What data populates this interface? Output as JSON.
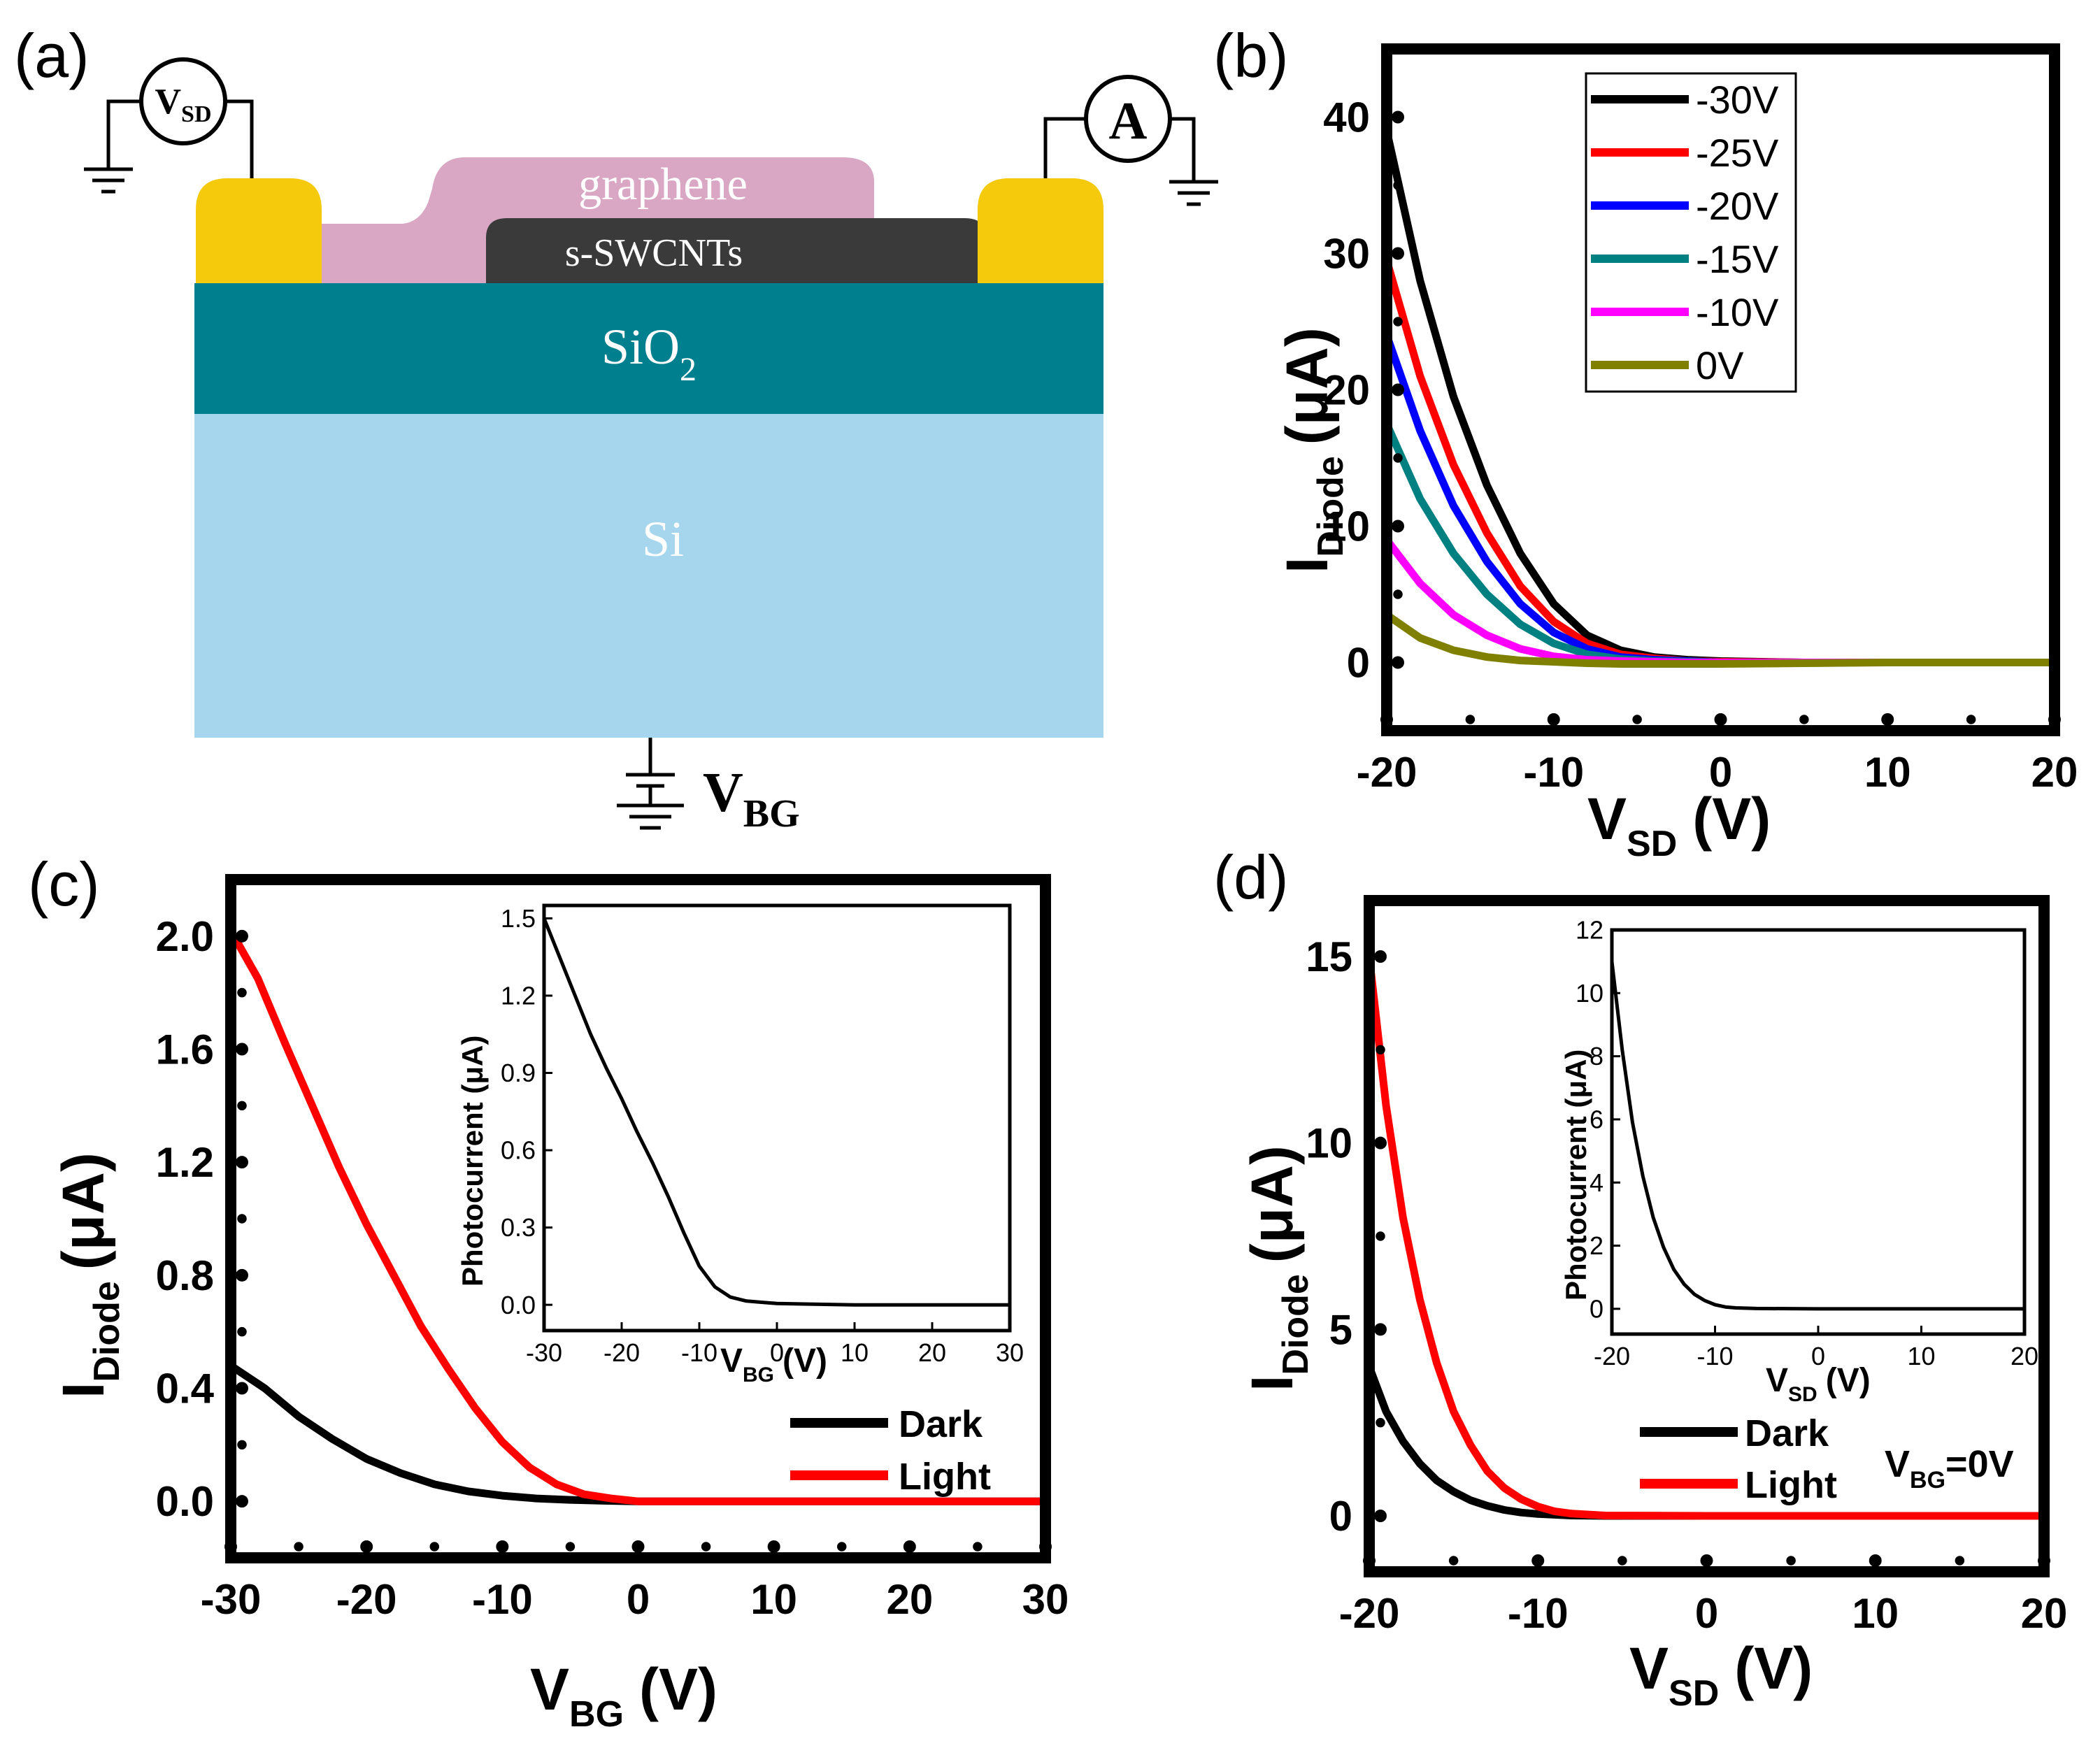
{
  "colors": {
    "gold": "#f5c90c",
    "graphene": "#d9a6c3",
    "swcnt": "#3a3a3a",
    "sio2": "#00808f",
    "si": "#a6d5ee",
    "black": "#000000",
    "red": "#ff0000",
    "blue": "#0000ff",
    "teal": "#008080",
    "magenta": "#ff00ff",
    "olive": "#808000"
  },
  "panel_a": {
    "label": "(a)",
    "graphene": "graphene",
    "swcnt": "s-SWCNTs",
    "sio2_main": "SiO",
    "sio2_sub": "2",
    "si": "Si",
    "vsd_main": "V",
    "vsd_sub": "SD",
    "ammeter": "A",
    "vbg_main": "V",
    "vbg_sub": "BG",
    "icons": [
      "ground-icon",
      "voltmeter-icon",
      "ammeter-icon",
      "battery-icon"
    ]
  },
  "chart_data": [
    {
      "id": "b",
      "type": "line",
      "panel_label": "(b)",
      "ylabel_main": "I",
      "ylabel_sub": "Diode",
      "ylabel_unit": "(μA)",
      "xlabel_main": "V",
      "xlabel_sub": "SD",
      "xlabel_unit": "(V)",
      "xlim": [
        -20,
        20
      ],
      "ylim": [
        -5,
        45
      ],
      "xticks": [
        "-20",
        "-10",
        "0",
        "10",
        "20"
      ],
      "xtick_values": [
        -20,
        -10,
        0,
        10,
        20
      ],
      "yticks": [
        "0",
        "10",
        "20",
        "30",
        "40"
      ],
      "ytick_values": [
        0,
        10,
        20,
        30,
        40
      ],
      "legend_position": "top-right",
      "series": [
        {
          "name": "-30V",
          "color": "#000000",
          "x": [
            -20,
            -18,
            -16,
            -14,
            -12,
            -10,
            -8,
            -6,
            -4,
            -2,
            0,
            5,
            10,
            15,
            20
          ],
          "y": [
            39,
            28,
            19.5,
            13,
            8,
            4.3,
            2,
            0.9,
            0.4,
            0.2,
            0.1,
            0,
            0,
            0,
            0
          ]
        },
        {
          "name": "-25V",
          "color": "#ff0000",
          "x": [
            -20,
            -18,
            -16,
            -14,
            -12,
            -10,
            -8,
            -6,
            -4,
            -2,
            0,
            5,
            10,
            15,
            20
          ],
          "y": [
            29.5,
            21,
            14.5,
            9.5,
            5.6,
            3,
            1.4,
            0.6,
            0.3,
            0.1,
            0.05,
            0,
            0,
            0,
            0
          ]
        },
        {
          "name": "-20V",
          "color": "#0000ff",
          "x": [
            -20,
            -18,
            -16,
            -14,
            -12,
            -10,
            -8,
            -6,
            -4,
            -2,
            0,
            5,
            10,
            15,
            20
          ],
          "y": [
            24,
            17,
            11.5,
            7.4,
            4.3,
            2.2,
            1,
            0.4,
            0.2,
            0.1,
            0,
            0,
            0,
            0,
            0
          ]
        },
        {
          "name": "-15V",
          "color": "#008080",
          "x": [
            -20,
            -18,
            -16,
            -14,
            -12,
            -10,
            -8,
            -6,
            -4,
            -2,
            0,
            5,
            10,
            15,
            20
          ],
          "y": [
            17.5,
            12,
            8,
            5,
            2.8,
            1.4,
            0.6,
            0.25,
            0.1,
            0.05,
            0,
            0,
            0,
            0,
            0
          ]
        },
        {
          "name": "-10V",
          "color": "#ff00ff",
          "x": [
            -20,
            -18,
            -16,
            -14,
            -12,
            -10,
            -8,
            -6,
            -4,
            -2,
            0,
            5,
            10,
            15,
            20
          ],
          "y": [
            9,
            5.8,
            3.5,
            2,
            1,
            0.45,
            0.2,
            0.1,
            0.05,
            0,
            0,
            0,
            0,
            0,
            0
          ]
        },
        {
          "name": "0V",
          "color": "#808000",
          "x": [
            -20,
            -18,
            -16,
            -14,
            -12,
            -10,
            -8,
            -6,
            -4,
            -2,
            0,
            5,
            10,
            15,
            20
          ],
          "y": [
            3.5,
            1.8,
            0.9,
            0.4,
            0.15,
            0.05,
            -0.05,
            -0.1,
            -0.1,
            -0.1,
            -0.1,
            -0.05,
            0,
            0,
            0
          ]
        }
      ]
    },
    {
      "id": "c",
      "type": "line",
      "panel_label": "(c)",
      "ylabel_main": "I",
      "ylabel_sub": "Diode",
      "ylabel_unit": "(μA)",
      "xlabel_main": "V",
      "xlabel_sub": "BG",
      "xlabel_unit": "(V)",
      "xlim": [
        -30,
        30
      ],
      "ylim": [
        -0.2,
        2.2
      ],
      "xticks": [
        "-30",
        "-20",
        "-10",
        "0",
        "10",
        "20",
        "30"
      ],
      "xtick_values": [
        -30,
        -20,
        -10,
        0,
        10,
        20,
        30
      ],
      "yticks": [
        "0.0",
        "0.4",
        "0.8",
        "1.2",
        "1.6",
        "2.0"
      ],
      "ytick_values": [
        0,
        0.4,
        0.8,
        1.2,
        1.6,
        2.0
      ],
      "legend_position": "bottom-right",
      "series": [
        {
          "name": "Dark",
          "color": "#000000",
          "x": [
            -30,
            -27.5,
            -25,
            -22.5,
            -20,
            -17.5,
            -15,
            -12.5,
            -10,
            -7.5,
            -5,
            -2.5,
            0,
            10,
            20,
            30
          ],
          "y": [
            0.48,
            0.4,
            0.3,
            0.22,
            0.15,
            0.1,
            0.06,
            0.035,
            0.02,
            0.01,
            0.005,
            0.002,
            0,
            0,
            0,
            0
          ]
        },
        {
          "name": "Light",
          "color": "#ff0000",
          "x": [
            -30,
            -28,
            -26,
            -24,
            -22,
            -20,
            -18,
            -16,
            -14,
            -12,
            -10,
            -8,
            -6,
            -4,
            -2,
            0,
            10,
            20,
            30
          ],
          "y": [
            2.02,
            1.85,
            1.62,
            1.4,
            1.18,
            0.98,
            0.8,
            0.62,
            0.47,
            0.33,
            0.21,
            0.12,
            0.06,
            0.025,
            0.01,
            0,
            0,
            0,
            0
          ]
        }
      ],
      "inset": {
        "ylabel": "Photocurrent (μA)",
        "xlabel_main": "V",
        "xlabel_sub": "BG",
        "xlabel_unit": "(V)",
        "xlim": [
          -30,
          30
        ],
        "ylim": [
          -0.1,
          1.55
        ],
        "xticks": [
          "-30",
          "-20",
          "-10",
          "0",
          "10",
          "20",
          "30"
        ],
        "xtick_values": [
          -30,
          -20,
          -10,
          0,
          10,
          20,
          30
        ],
        "yticks": [
          "0.0",
          "0.3",
          "0.6",
          "0.9",
          "1.2",
          "1.5"
        ],
        "ytick_values": [
          0,
          0.3,
          0.6,
          0.9,
          1.2,
          1.5
        ],
        "series": [
          {
            "name": "Photocurrent",
            "color": "#000000",
            "x": [
              -30,
              -28,
              -26,
              -24,
              -22,
              -20,
              -18,
              -16,
              -14,
              -12,
              -10,
              -8,
              -6,
              -4,
              -2,
              0,
              10,
              20,
              30
            ],
            "y": [
              1.5,
              1.35,
              1.2,
              1.05,
              0.92,
              0.8,
              0.67,
              0.55,
              0.42,
              0.28,
              0.15,
              0.07,
              0.03,
              0.015,
              0.01,
              0.005,
              0,
              0,
              0
            ]
          }
        ]
      }
    },
    {
      "id": "d",
      "type": "line",
      "panel_label": "(d)",
      "ylabel_main": "I",
      "ylabel_sub": "Diode",
      "ylabel_unit": "(μA)",
      "xlabel_main": "V",
      "xlabel_sub": "SD",
      "xlabel_unit": "(V)",
      "xlim": [
        -20,
        20
      ],
      "ylim": [
        -1.5,
        16.5
      ],
      "xticks": [
        "-20",
        "-10",
        "0",
        "10",
        "20"
      ],
      "xtick_values": [
        -20,
        -10,
        0,
        10,
        20
      ],
      "yticks": [
        "0",
        "5",
        "10",
        "15"
      ],
      "ytick_values": [
        0,
        5,
        10,
        15
      ],
      "legend_position": "bottom-right",
      "annotation_main": "V",
      "annotation_sub": "BG",
      "annotation_value": "=0V",
      "series": [
        {
          "name": "Dark",
          "color": "#000000",
          "x": [
            -20,
            -19,
            -18,
            -17,
            -16,
            -15,
            -14,
            -13,
            -12,
            -11,
            -10,
            -8,
            -6,
            0,
            10,
            20
          ],
          "y": [
            4,
            2.8,
            2,
            1.4,
            0.95,
            0.65,
            0.42,
            0.27,
            0.16,
            0.09,
            0.05,
            0.01,
            0,
            0,
            0,
            0
          ]
        },
        {
          "name": "Light",
          "color": "#ff0000",
          "x": [
            -20,
            -19,
            -18,
            -17,
            -16,
            -15,
            -14,
            -13,
            -12,
            -11,
            -10,
            -9,
            -8,
            -6,
            0,
            10,
            20
          ],
          "y": [
            15,
            11,
            8,
            5.8,
            4.1,
            2.8,
            1.9,
            1.2,
            0.75,
            0.45,
            0.25,
            0.12,
            0.06,
            0.01,
            0,
            0,
            0
          ]
        }
      ],
      "inset": {
        "ylabel": "Photocurrent (μA)",
        "xlabel_main": "V",
        "xlabel_sub": "SD",
        "xlabel_unit": "(V)",
        "xlim": [
          -20,
          20
        ],
        "ylim": [
          -0.8,
          12
        ],
        "xticks": [
          "-20",
          "-10",
          "0",
          "10",
          "20"
        ],
        "xtick_values": [
          -20,
          -10,
          0,
          10,
          20
        ],
        "yticks": [
          "0",
          "2",
          "4",
          "6",
          "8",
          "10",
          "12"
        ],
        "ytick_values": [
          0,
          2,
          4,
          6,
          8,
          10,
          12
        ],
        "series": [
          {
            "name": "Photocurrent",
            "color": "#000000",
            "x": [
              -20,
              -19,
              -18,
              -17,
              -16,
              -15,
              -14,
              -13,
              -12,
              -11,
              -10,
              -9,
              -8,
              -6,
              0,
              10,
              20
            ],
            "y": [
              11,
              8.2,
              5.9,
              4.2,
              2.9,
              1.95,
              1.25,
              0.78,
              0.46,
              0.26,
              0.13,
              0.06,
              0.03,
              0.01,
              0,
              0,
              0
            ]
          }
        ]
      }
    }
  ]
}
